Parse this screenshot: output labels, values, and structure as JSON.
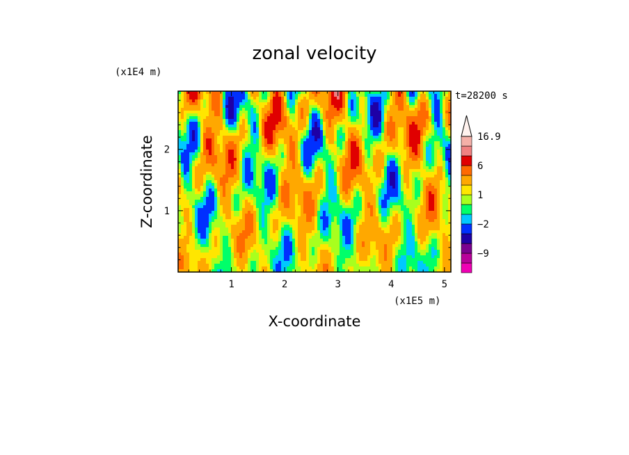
{
  "chart_data": {
    "type": "heatmap",
    "title": "zonal velocity",
    "xlabel": "X-coordinate",
    "ylabel": "Z-coordinate",
    "x_unit": "(x1E5 m)",
    "y_unit": "(x1E4 m)",
    "time_label": "t=28200 s",
    "xlim": [
      0,
      5.12
    ],
    "ylim": [
      0,
      2.95
    ],
    "x_ticks": [
      "1",
      "2",
      "3",
      "4",
      "5"
    ],
    "y_ticks": [
      "1",
      "2"
    ],
    "colorbar": {
      "levels": [
        -15,
        -12,
        -9,
        -6,
        -4,
        -2,
        -1,
        0,
        1,
        2,
        4,
        6,
        9,
        12,
        16.9
      ],
      "colors": [
        "#ef00b4",
        "#b8009a",
        "#7a0090",
        "#1e00a6",
        "#0030ff",
        "#00c8ff",
        "#00ff6a",
        "#a8ff1e",
        "#ffe600",
        "#ffa800",
        "#ff6a00",
        "#e00000",
        "#f08080",
        "#f5b0a8",
        "#fff2ee"
      ],
      "labels": [
        {
          "value": 16.9,
          "text": "16.9"
        },
        {
          "value": 6,
          "text": "6"
        },
        {
          "value": 1,
          "text": "1"
        },
        {
          "value": -2,
          "text": "−2"
        },
        {
          "value": -9,
          "text": "−9"
        }
      ]
    }
  }
}
